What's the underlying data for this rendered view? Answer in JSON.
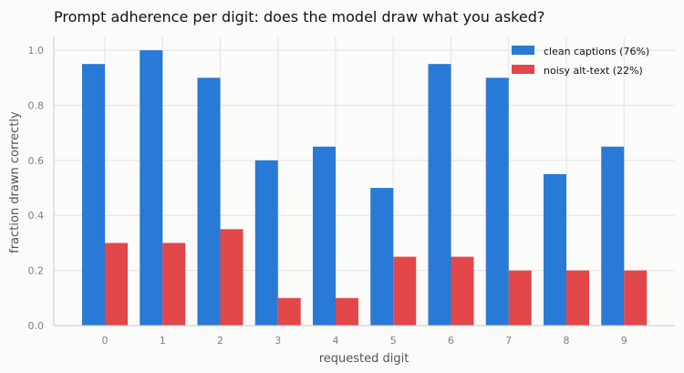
{
  "chart_data": {
    "type": "bar",
    "title": "Prompt adherence per digit: does the model draw what you asked?",
    "xlabel": "requested digit",
    "ylabel": "fraction drawn correctly",
    "categories": [
      "0",
      "1",
      "2",
      "3",
      "4",
      "5",
      "6",
      "7",
      "8",
      "9"
    ],
    "series": [
      {
        "name": "clean captions (76%)",
        "color": "#2979d6",
        "values": [
          0.95,
          1.0,
          0.9,
          0.6,
          0.65,
          0.5,
          0.95,
          0.9,
          0.55,
          0.65
        ]
      },
      {
        "name": "noisy alt-text (22%)",
        "color": "#e2474a",
        "values": [
          0.3,
          0.3,
          0.35,
          0.1,
          0.1,
          0.25,
          0.25,
          0.2,
          0.2,
          0.2
        ]
      }
    ],
    "ylim": [
      0,
      1.05
    ],
    "yticks": [
      "0.0",
      "0.2",
      "0.4",
      "0.6",
      "0.8",
      "1.0"
    ],
    "grid": true,
    "legend_position": "top-right"
  }
}
